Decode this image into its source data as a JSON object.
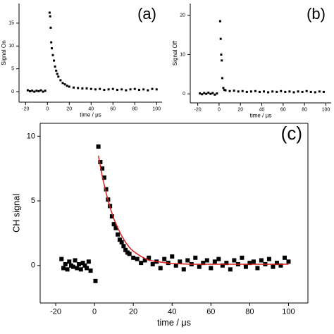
{
  "chart_data": [
    {
      "type": "scatter",
      "label": "(a)",
      "xlabel": "time / μs",
      "ylabel": "Signal On",
      "xlim": [
        -26,
        105
      ],
      "ylim": [
        -2.3,
        19.3
      ],
      "xticks": [
        -20,
        0,
        20,
        40,
        60,
        80,
        100
      ],
      "yticks": [
        0,
        5,
        10,
        15
      ],
      "series": [
        {
          "color": "#000000",
          "x": [
            -18,
            -16,
            -14,
            -12,
            -10,
            -8,
            -6,
            -4,
            -2,
            2,
            2.5,
            3,
            3.5,
            4,
            5,
            6,
            7,
            8,
            9,
            10,
            12,
            14,
            16,
            18,
            20,
            24,
            28,
            32,
            36,
            40,
            44,
            48,
            52,
            56,
            60,
            64,
            68,
            72,
            76,
            80,
            84,
            88,
            92,
            96,
            100
          ],
          "values": [
            0.3,
            0.1,
            0.2,
            0.0,
            0.2,
            0.1,
            0.3,
            0.0,
            0.2,
            17.3,
            16.5,
            14,
            10.8,
            9.5,
            8,
            6.8,
            5.5,
            4.6,
            3.9,
            3.3,
            2.5,
            1.9,
            1.6,
            1.3,
            1.1,
            0.9,
            0.8,
            0.7,
            0.7,
            0.6,
            0.5,
            0.6,
            0.4,
            0.5,
            0.6,
            0.4,
            0.5,
            0.3,
            0.5,
            0.6,
            0.4,
            0.5,
            0.3,
            0.6,
            0.5
          ]
        }
      ]
    },
    {
      "type": "scatter",
      "label": "(b)",
      "xlabel": "time / μs",
      "ylabel": "Signal Off",
      "xlim": [
        -27,
        105
      ],
      "ylim": [
        -2.3,
        23
      ],
      "xticks": [
        -20,
        0,
        20,
        40,
        60,
        80,
        100
      ],
      "yticks": [
        0,
        10,
        20
      ],
      "series": [
        {
          "color": "#000000",
          "x": [
            -18,
            -16,
            -14,
            -12,
            -10,
            -8,
            -6,
            -4,
            -2,
            1,
            1.5,
            2,
            2.5,
            3,
            4,
            5,
            6,
            10,
            14,
            18,
            22,
            26,
            30,
            34,
            38,
            42,
            46,
            50,
            54,
            58,
            62,
            66,
            70,
            74,
            78,
            82,
            86,
            90,
            94,
            98
          ],
          "values": [
            0.1,
            -0.1,
            0.2,
            0.0,
            0.3,
            0.0,
            0.2,
            -0.2,
            0.1,
            18.5,
            14,
            10,
            8.5,
            4,
            1.5,
            1,
            0.9,
            0.7,
            0.8,
            0.6,
            0.7,
            0.5,
            0.6,
            0.7,
            0.5,
            0.6,
            0.4,
            0.6,
            0.5,
            0.7,
            0.5,
            0.6,
            0.4,
            0.6,
            0.5,
            0.7,
            0.5,
            0.4,
            0.6,
            0.5
          ]
        }
      ]
    },
    {
      "type": "scatter",
      "label": "(c)",
      "xlabel": "time / μs",
      "ylabel": "CH signal",
      "xlim": [
        -28,
        110
      ],
      "ylim": [
        -2.9,
        11
      ],
      "xticks": [
        -20,
        0,
        20,
        40,
        60,
        80,
        100
      ],
      "yticks": [
        0,
        5,
        10
      ],
      "series": [
        {
          "color": "#000000",
          "x": [
            -17,
            -16,
            -15,
            -14,
            -13,
            -12,
            -11,
            -10,
            -9,
            -8,
            -7,
            -6,
            -5,
            -4,
            -3,
            -2,
            0.5,
            2,
            3,
            4,
            5,
            6,
            7,
            8,
            9,
            10,
            11,
            12,
            13,
            14,
            15,
            16,
            17,
            18,
            20,
            22,
            24,
            26,
            28,
            30,
            32,
            34,
            36,
            38,
            40,
            42,
            44,
            46,
            48,
            50,
            52,
            54,
            56,
            58,
            60,
            62,
            64,
            66,
            68,
            70,
            72,
            74,
            76,
            78,
            80,
            82,
            84,
            86,
            88,
            90,
            92,
            94,
            96,
            98,
            100
          ],
          "values": [
            0.5,
            -0.2,
            0.1,
            -0.3,
            0.3,
            0.0,
            -0.1,
            0.4,
            -0.2,
            0.1,
            -0.3,
            0.2,
            0.0,
            -0.2,
            0.3,
            -0.4,
            -1.2,
            9.2,
            8.0,
            7.5,
            6.8,
            5.9,
            5.1,
            4.6,
            3.8,
            3.2,
            2.9,
            2.4,
            2.0,
            1.8,
            1.5,
            1.2,
            1.0,
            0.9,
            0.6,
            0.5,
            0.2,
            0.4,
            0.6,
            0.1,
            0.3,
            -0.2,
            0.5,
            0.2,
            0.7,
            0.0,
            0.3,
            -0.3,
            0.4,
            0.1,
            0.6,
            -0.1,
            0.2,
            0.4,
            -0.2,
            0.3,
            0.5,
            0.0,
            0.2,
            -0.3,
            0.4,
            0.1,
            0.6,
            -0.1,
            0.2,
            0.3,
            -0.2,
            0.4,
            0.1,
            0.5,
            -0.1,
            0.2,
            0.0,
            0.6,
            0.3
          ]
        },
        {
          "type": "line",
          "color": "#d62020",
          "x": [
            2,
            4,
            6,
            8,
            10,
            12,
            14,
            16,
            18,
            20,
            24,
            28,
            32,
            40,
            50,
            60,
            70,
            80,
            90,
            100
          ],
          "values": [
            8.5,
            6.9,
            5.6,
            4.5,
            3.6,
            2.9,
            2.3,
            1.8,
            1.4,
            1.1,
            0.7,
            0.4,
            0.3,
            0.15,
            0.1,
            0.1,
            0.1,
            0.1,
            0.1,
            0.1
          ]
        }
      ]
    }
  ]
}
